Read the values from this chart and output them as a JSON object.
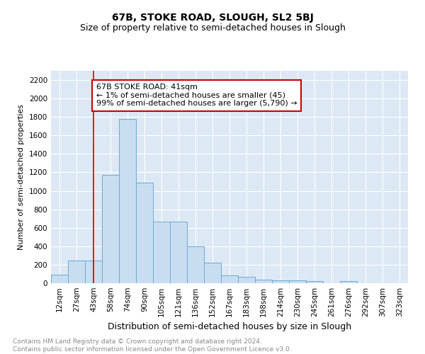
{
  "title": "67B, STOKE ROAD, SLOUGH, SL2 5BJ",
  "subtitle": "Size of property relative to semi-detached houses in Slough",
  "xlabel": "Distribution of semi-detached houses by size in Slough",
  "ylabel": "Number of semi-detached properties",
  "footer": "Contains HM Land Registry data © Crown copyright and database right 2024.\nContains public sector information licensed under the Open Government Licence v3.0.",
  "bin_labels": [
    "12sqm",
    "27sqm",
    "43sqm",
    "58sqm",
    "74sqm",
    "90sqm",
    "105sqm",
    "121sqm",
    "136sqm",
    "152sqm",
    "167sqm",
    "183sqm",
    "198sqm",
    "214sqm",
    "230sqm",
    "245sqm",
    "261sqm",
    "276sqm",
    "292sqm",
    "307sqm",
    "323sqm"
  ],
  "bar_values": [
    90,
    245,
    245,
    1175,
    1775,
    1090,
    670,
    670,
    395,
    225,
    85,
    70,
    40,
    30,
    30,
    20,
    0,
    20,
    0,
    0,
    0
  ],
  "bar_color": "#c9ddf0",
  "bar_edge_color": "#6aaad4",
  "ylim": [
    0,
    2300
  ],
  "yticks": [
    0,
    200,
    400,
    600,
    800,
    1000,
    1200,
    1400,
    1600,
    1800,
    2000,
    2200
  ],
  "vline_x": 2,
  "vline_color": "#cc0000",
  "annotation_text": "67B STOKE ROAD: 41sqm\n← 1% of semi-detached houses are smaller (45)\n99% of semi-detached houses are larger (5,790) →",
  "annotation_box_color": "#ffffff",
  "annotation_box_edge": "#cc0000",
  "plot_bg_color": "#dde8f5",
  "fig_bg_color": "#ffffff",
  "title_fontsize": 10,
  "subtitle_fontsize": 9,
  "footer_fontsize": 6.5,
  "ylabel_fontsize": 8,
  "xlabel_fontsize": 9,
  "tick_fontsize": 7.5,
  "annot_fontsize": 8
}
